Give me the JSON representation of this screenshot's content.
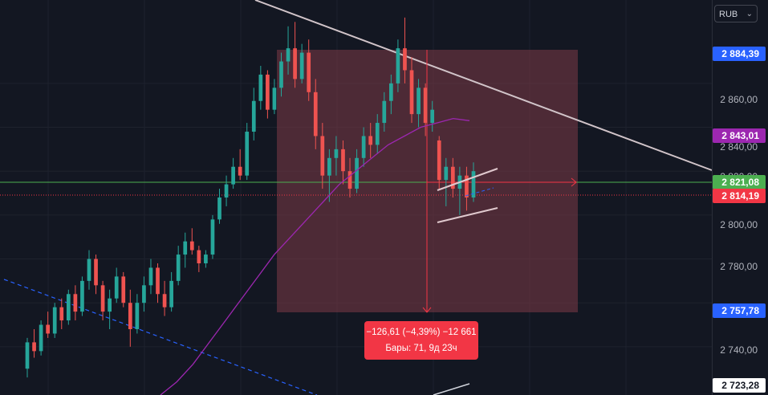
{
  "currency": {
    "label": "RUB",
    "chevron_icon": "chevron-down-icon"
  },
  "price_axis": {
    "ticks": [
      "2 860,00",
      "2 840,00",
      "2 820,00",
      "2 800,00",
      "2 780,00",
      "2 740,00"
    ],
    "tags": [
      {
        "label": "2 884,39",
        "bg": "#2962ff",
        "fg": "#ffffff"
      },
      {
        "label": "2 843,01",
        "bg": "#9c27b0",
        "fg": "#ffffff"
      },
      {
        "label": "2 821,08",
        "bg": "#4caf50",
        "fg": "#ffffff"
      },
      {
        "label": "2 814,19",
        "bg": "#f23645",
        "fg": "#ffffff"
      },
      {
        "label": "2 757,78",
        "bg": "#2962ff",
        "fg": "#ffffff"
      },
      {
        "label": "2 723,28",
        "bg": "#ffffff",
        "fg": "#131722"
      }
    ]
  },
  "measure": {
    "line1": "−126,61 (−4,39%) −12 661",
    "line2": "Бары: 71, 9д 23ч"
  },
  "colors": {
    "up": "#26a69a",
    "down": "#ef5350",
    "ma": "#9c27b0",
    "measure_fill": "#7d3a47",
    "trendline": "#d1c4c9"
  },
  "chart_data": {
    "type": "candlestick",
    "ylim": [
      2718,
      2898
    ],
    "candles": [
      [
        2730,
        2744,
        2726,
        2742
      ],
      [
        2742,
        2748,
        2735,
        2738
      ],
      [
        2738,
        2752,
        2736,
        2750
      ],
      [
        2750,
        2756,
        2744,
        2746
      ],
      [
        2746,
        2760,
        2744,
        2758
      ],
      [
        2758,
        2762,
        2748,
        2752
      ],
      [
        2752,
        2766,
        2750,
        2764
      ],
      [
        2764,
        2768,
        2752,
        2756
      ],
      [
        2756,
        2772,
        2754,
        2770
      ],
      [
        2770,
        2784,
        2766,
        2780
      ],
      [
        2780,
        2782,
        2764,
        2768
      ],
      [
        2768,
        2770,
        2752,
        2756
      ],
      [
        2756,
        2766,
        2748,
        2762
      ],
      [
        2762,
        2776,
        2760,
        2772
      ],
      [
        2772,
        2774,
        2758,
        2760
      ],
      [
        2760,
        2766,
        2740,
        2748
      ],
      [
        2748,
        2764,
        2746,
        2760
      ],
      [
        2760,
        2772,
        2756,
        2768
      ],
      [
        2768,
        2780,
        2764,
        2776
      ],
      [
        2776,
        2778,
        2760,
        2764
      ],
      [
        2764,
        2770,
        2754,
        2758
      ],
      [
        2758,
        2774,
        2756,
        2770
      ],
      [
        2770,
        2786,
        2768,
        2782
      ],
      [
        2782,
        2792,
        2776,
        2788
      ],
      [
        2788,
        2794,
        2782,
        2784
      ],
      [
        2784,
        2786,
        2774,
        2778
      ],
      [
        2778,
        2784,
        2776,
        2782
      ],
      [
        2782,
        2800,
        2780,
        2798
      ],
      [
        2798,
        2812,
        2796,
        2808
      ],
      [
        2808,
        2818,
        2804,
        2814
      ],
      [
        2814,
        2826,
        2812,
        2822
      ],
      [
        2822,
        2830,
        2816,
        2818
      ],
      [
        2818,
        2842,
        2816,
        2838
      ],
      [
        2838,
        2858,
        2834,
        2852
      ],
      [
        2852,
        2868,
        2848,
        2864
      ],
      [
        2864,
        2866,
        2844,
        2848
      ],
      [
        2848,
        2862,
        2846,
        2858
      ],
      [
        2858,
        2874,
        2854,
        2870
      ],
      [
        2870,
        2886,
        2864,
        2876
      ],
      [
        2876,
        2888,
        2858,
        2862
      ],
      [
        2862,
        2878,
        2860,
        2874
      ],
      [
        2874,
        2880,
        2852,
        2856
      ],
      [
        2856,
        2862,
        2830,
        2836
      ],
      [
        2836,
        2842,
        2812,
        2818
      ],
      [
        2818,
        2830,
        2806,
        2826
      ],
      [
        2826,
        2836,
        2818,
        2830
      ],
      [
        2830,
        2834,
        2814,
        2820
      ],
      [
        2820,
        2826,
        2808,
        2812
      ],
      [
        2812,
        2830,
        2810,
        2826
      ],
      [
        2826,
        2840,
        2822,
        2836
      ],
      [
        2836,
        2842,
        2826,
        2832
      ],
      [
        2832,
        2846,
        2828,
        2842
      ],
      [
        2842,
        2856,
        2838,
        2852
      ],
      [
        2852,
        2864,
        2846,
        2860
      ],
      [
        2860,
        2880,
        2856,
        2876
      ],
      [
        2876,
        2890,
        2860,
        2866
      ],
      [
        2866,
        2872,
        2842,
        2846
      ],
      [
        2846,
        2862,
        2840,
        2858
      ],
      [
        2858,
        2860,
        2836,
        2842
      ],
      [
        2842,
        2852,
        2838,
        2848
      ],
      [
        2834,
        2836,
        2812,
        2816
      ],
      [
        2816,
        2826,
        2804,
        2822
      ],
      [
        2822,
        2826,
        2808,
        2812
      ],
      [
        2812,
        2822,
        2800,
        2818
      ],
      [
        2818,
        2822,
        2802,
        2808
      ],
      [
        2808,
        2824,
        2806,
        2820
      ]
    ],
    "ma_values": [
      2718,
      2724,
      2732,
      2742,
      2752,
      2762,
      2772,
      2782,
      2790,
      2798,
      2806,
      2814,
      2820,
      2826,
      2832,
      2836,
      2840,
      2842,
      2844,
      2843
    ]
  }
}
